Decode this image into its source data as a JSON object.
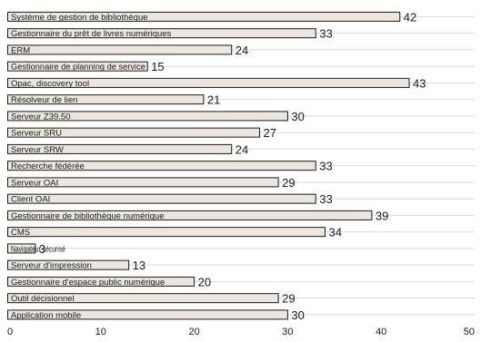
{
  "chart_data": {
    "type": "bar",
    "orientation": "horizontal",
    "categories": [
      "Système de gestion de bibliothèque",
      "Gestionnaire du prêt de livres numériques",
      "ERM",
      "Gestionnaire de planning de service",
      "Opac, discovery tool",
      "Résolveur de lien",
      "Serveur Z39.50",
      "Serveur SRU",
      "Serveur SRW",
      "Recherche fédérée",
      "Serveur OAI",
      "Client OAI",
      "Gestionnaire de bibliothèque numérique",
      "CMS",
      "Navigateur sécurisé",
      "Serveur d'impression",
      "Gestionnaire d'espace public numérique",
      "Outil décisionnel",
      "Application mobile"
    ],
    "values": [
      42,
      33,
      24,
      15,
      43,
      21,
      30,
      27,
      24,
      33,
      29,
      33,
      39,
      34,
      3,
      13,
      20,
      29,
      30
    ],
    "xlim": [
      0,
      50
    ],
    "xticks": [
      0,
      10,
      20,
      30,
      40,
      50
    ],
    "grid": true,
    "colors": {
      "bar_fill": "#ece6de",
      "bar_stroke": "#1a1a1a",
      "grid": "#d8d8d8",
      "text": "#1a1a1a"
    }
  }
}
